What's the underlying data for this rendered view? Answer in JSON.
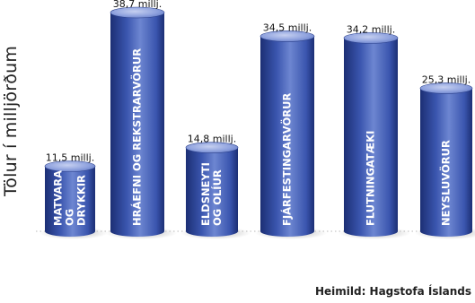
{
  "chart_data": {
    "type": "bar",
    "ylabel": "Tölur í milljörðum",
    "source": "Heimild: Hagstofa Íslands",
    "categories": [
      [
        "MATVARA",
        "OG",
        "DRYKKIR"
      ],
      [
        "HRÁEFNI OG REKSTRARVÖRUR"
      ],
      [
        "ELDSNEYTI",
        "OG OLÍUR"
      ],
      [
        "FJÁRFESTINGARVÖRUR"
      ],
      [
        "FLUTNINGATÆKI"
      ],
      [
        "NEYSLUVÖRUR"
      ]
    ],
    "values": [
      11.5,
      38.7,
      14.8,
      34.5,
      34.2,
      25.3
    ],
    "value_labels": [
      "11,5 millj.",
      "38,7 millj.",
      "14,8 millj.",
      "34,5 millj.",
      "34,2 millj.",
      "25,3 millj."
    ],
    "colors": {
      "bar_dark": "#1c2f74",
      "bar_mid": "#3a55ae",
      "bar_light": "#6d86d1",
      "top": "#8fa2de",
      "text": "#ffffff"
    }
  }
}
